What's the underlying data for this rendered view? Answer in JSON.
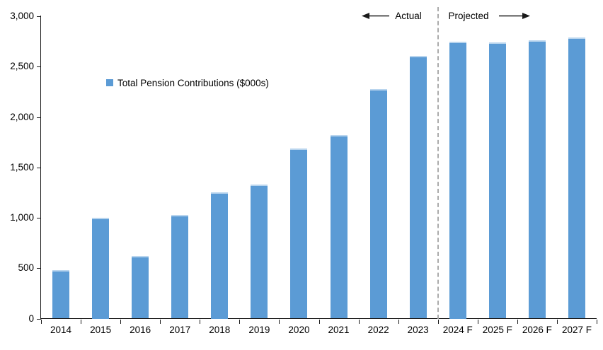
{
  "chart_data": {
    "type": "bar",
    "title": "",
    "xlabel": "",
    "ylabel": "",
    "categories": [
      "2014",
      "2015",
      "2016",
      "2017",
      "2018",
      "2019",
      "2020",
      "2021",
      "2022",
      "2023",
      "2024 F",
      "2025 F",
      "2026 F",
      "2027 F"
    ],
    "series": [
      {
        "name": "Total Pension Contributions ($000s)",
        "values": [
          480,
          1000,
          620,
          1030,
          1250,
          1330,
          1690,
          1820,
          2280,
          2610,
          2750,
          2740,
          2760,
          2790
        ]
      }
    ],
    "ylim": [
      0,
      3000
    ],
    "ytick_step": 500,
    "ytick_labels": [
      "0",
      "500",
      "1,000",
      "1,500",
      "2,000",
      "2,500",
      "3,000"
    ],
    "grid": false,
    "legend_position": "inside-upper-left",
    "bar_color": "#5B9BD5",
    "divider": {
      "after_category": "2023",
      "after_index": 9,
      "style": "dashed",
      "color": "#ABABAB"
    },
    "annotations": [
      {
        "text": "Actual",
        "arrow": "left",
        "side": "left-of-divider"
      },
      {
        "text": "Projected",
        "arrow": "right",
        "side": "right-of-divider"
      }
    ]
  },
  "colors": {
    "bar": "#5B9BD5",
    "bar_top_edge": "#B9D5EE",
    "axis": "#1a1a1a",
    "divider": "#ABABAB",
    "background": "#FFFFFF",
    "text": "#000000"
  }
}
